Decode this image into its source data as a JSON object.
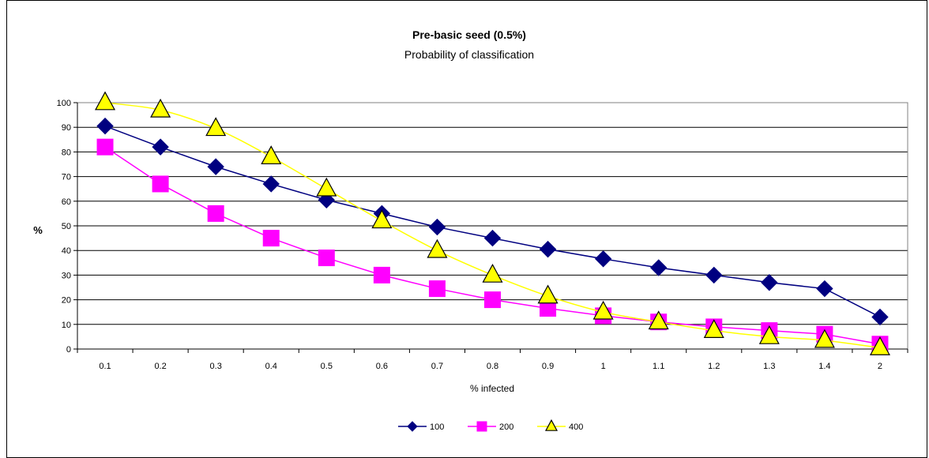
{
  "chart_data": {
    "type": "line",
    "title": "Pre-basic seed (0.5%)",
    "subtitle": "Probability of classification",
    "xlabel": "% infected",
    "ylabel": "%",
    "categories": [
      "0.1",
      "0.2",
      "0.3",
      "0.4",
      "0.5",
      "0.6",
      "0.7",
      "0.8",
      "0.9",
      "1",
      "1.1",
      "1.2",
      "1.3",
      "1.4",
      "2"
    ],
    "ylim": [
      0,
      100
    ],
    "yticks": [
      "0",
      "10",
      "20",
      "30",
      "40",
      "50",
      "60",
      "70",
      "80",
      "90",
      "100"
    ],
    "grid": true,
    "legend_position": "bottom",
    "series": [
      {
        "name": "100",
        "color": "#000080",
        "marker": "diamond",
        "smooth": false,
        "values": [
          90.5,
          82,
          74,
          67,
          60.5,
          55,
          49.5,
          45,
          40.5,
          36.6,
          33,
          30,
          27,
          24.5,
          13
        ]
      },
      {
        "name": "200",
        "color": "#ff00ff",
        "marker": "square",
        "smooth": false,
        "values": [
          82,
          67,
          55,
          45,
          37,
          30,
          24.5,
          20,
          16.5,
          13.5,
          11,
          9,
          7.5,
          6,
          2
        ]
      },
      {
        "name": "400",
        "color": "#ffff00",
        "marker": "triangle",
        "smooth": true,
        "values": [
          100,
          97,
          89.5,
          78,
          65,
          52,
          40,
          30,
          21.5,
          15,
          11,
          7.5,
          5,
          3.5,
          0.5
        ]
      }
    ]
  }
}
